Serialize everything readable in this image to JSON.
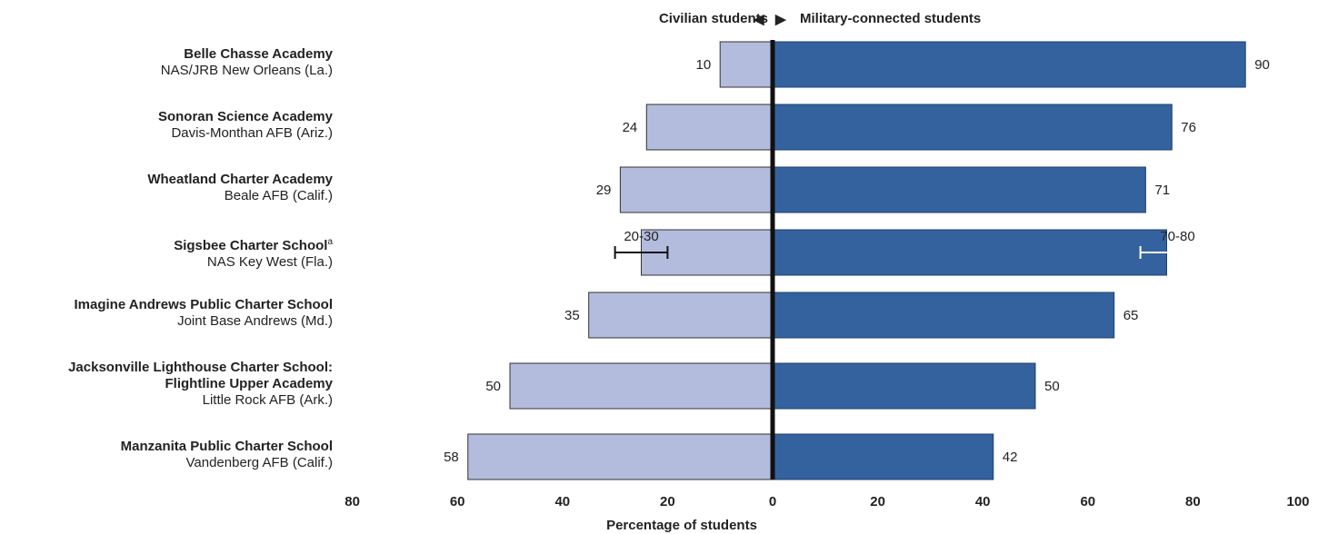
{
  "chart_data": {
    "type": "bar",
    "orientation": "horizontal-diverging",
    "header": {
      "left_label": "Civilian students",
      "left_arrow": "◀",
      "right_arrow": "▶",
      "right_label": "Military-connected students"
    },
    "xlabel": "Percentage of students",
    "x_ticks": [
      "80",
      "60",
      "40",
      "20",
      "0",
      "20",
      "40",
      "60",
      "80",
      "100"
    ],
    "xlim": [
      -80,
      100
    ],
    "colors": {
      "civilian": "#b3bcdc",
      "military": "#33629e",
      "axis": "#111111",
      "text": "#222222"
    },
    "categories": [
      {
        "name": "Belle Chasse Academy",
        "base": "NAS/JRB New Orleans (La.)"
      },
      {
        "name": "Sonoran Science Academy",
        "base": "Davis-Monthan AFB (Ariz.)"
      },
      {
        "name": "Wheatland Charter Academy",
        "base": "Beale AFB (Calif.)"
      },
      {
        "name": "Sigsbee Charter School",
        "footnote": "a",
        "base": "NAS Key West (Fla.)"
      },
      {
        "name": "Imagine Andrews Public Charter School",
        "base": "Joint Base Andrews (Md.)"
      },
      {
        "name": "Jacksonville Lighthouse Charter School:",
        "name2": "Flightline Upper Academy",
        "base": "Little Rock AFB (Ark.)"
      },
      {
        "name": "Manzanita Public Charter School",
        "base": "Vandenberg AFB (Calif.)"
      }
    ],
    "series": [
      {
        "name": "Civilian students",
        "values": [
          10,
          24,
          29,
          25,
          35,
          50,
          58
        ],
        "labels": [
          "10",
          "24",
          "29",
          "20-30",
          "35",
          "50",
          "58"
        ]
      },
      {
        "name": "Military-connected students",
        "values": [
          90,
          76,
          71,
          75,
          65,
          50,
          42
        ],
        "labels": [
          "90",
          "76",
          "71",
          "70-80",
          "65",
          "50",
          "42"
        ]
      }
    ],
    "ranges": [
      {
        "row": 3,
        "series": 0,
        "low": 20,
        "high": 30
      },
      {
        "row": 3,
        "series": 1,
        "low": 70,
        "high": 80
      }
    ]
  }
}
